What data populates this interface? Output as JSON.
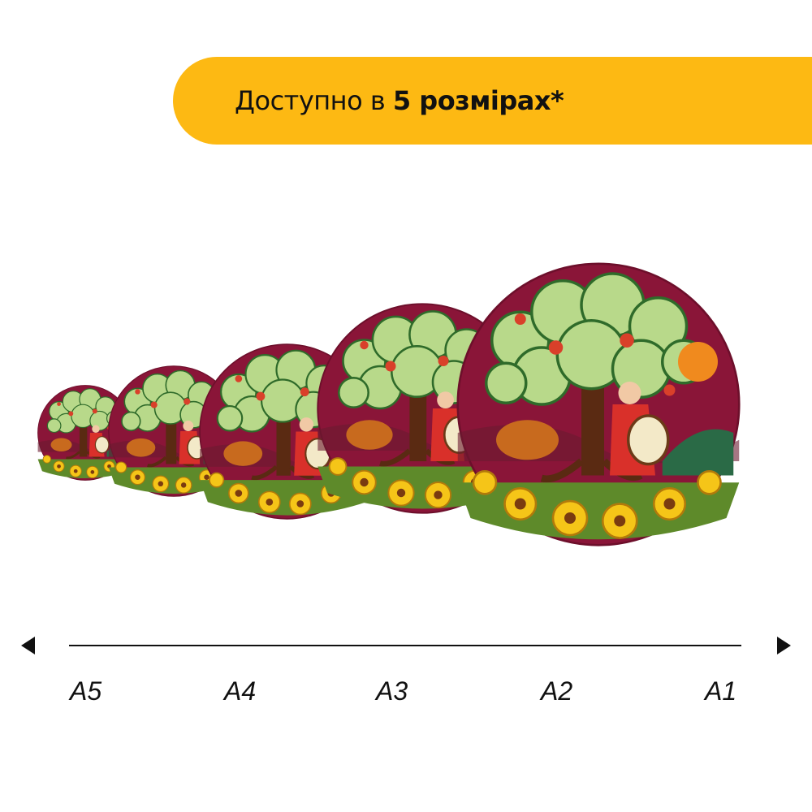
{
  "banner": {
    "text_regular": "Доступно в ",
    "text_bold": "5 розмірах*",
    "color": "#FDB913"
  },
  "sizes": [
    "A5",
    "A4",
    "A3",
    "A2",
    "A1"
  ],
  "puzzle": {
    "background_color": "#8A1538",
    "description_icon": "round-wooden-puzzle-tree-cossack"
  }
}
